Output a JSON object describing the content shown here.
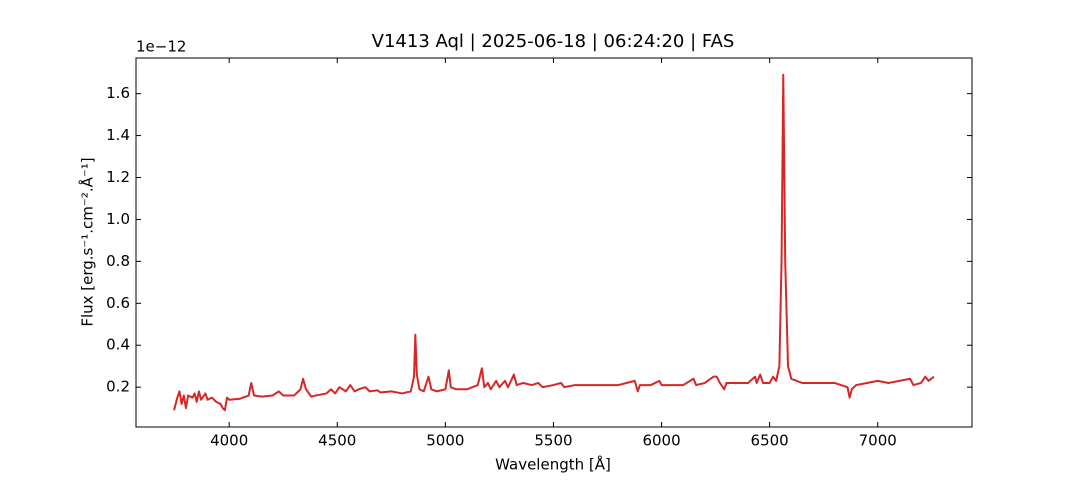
{
  "chart_data": {
    "type": "line",
    "title": "V1413 Aql | 2025-06-18 | 06:24:20 | FAS",
    "x_label": "Wavelength [Å]",
    "y_label": "Flux [erg.s⁻¹.cm⁻².Å⁻¹]",
    "y_offset_label": "1e−12",
    "color": "#d62728",
    "x": [
      3745,
      3760,
      3770,
      3780,
      3790,
      3800,
      3810,
      3830,
      3840,
      3850,
      3860,
      3870,
      3890,
      3900,
      3920,
      3940,
      3960,
      3970,
      3980,
      3990,
      4000,
      4050,
      4090,
      4102,
      4115,
      4150,
      4200,
      4230,
      4250,
      4300,
      4330,
      4342,
      4355,
      4380,
      4400,
      4450,
      4471,
      4490,
      4510,
      4540,
      4560,
      4580,
      4600,
      4630,
      4650,
      4686,
      4700,
      4750,
      4800,
      4840,
      4855,
      4861,
      4868,
      4880,
      4900,
      4922,
      4935,
      4960,
      5000,
      5016,
      5025,
      5050,
      5100,
      5150,
      5169,
      5180,
      5197,
      5210,
      5235,
      5250,
      5276,
      5290,
      5317,
      5330,
      5360,
      5400,
      5430,
      5450,
      5500,
      5535,
      5550,
      5600,
      5700,
      5800,
      5876,
      5890,
      5900,
      5950,
      5990,
      6000,
      6100,
      6148,
      6160,
      6200,
      6240,
      6255,
      6270,
      6290,
      6300,
      6350,
      6400,
      6433,
      6440,
      6456,
      6470,
      6500,
      6516,
      6530,
      6545,
      6555,
      6563,
      6572,
      6585,
      6600,
      6650,
      6700,
      6800,
      6860,
      6870,
      6880,
      6900,
      6950,
      7000,
      7050,
      7100,
      7150,
      7165,
      7200,
      7220,
      7235,
      7260
    ],
    "values": [
      0.09,
      0.15,
      0.18,
      0.12,
      0.16,
      0.1,
      0.16,
      0.15,
      0.17,
      0.13,
      0.18,
      0.14,
      0.17,
      0.14,
      0.15,
      0.13,
      0.12,
      0.1,
      0.09,
      0.15,
      0.14,
      0.145,
      0.16,
      0.22,
      0.16,
      0.155,
      0.16,
      0.18,
      0.16,
      0.16,
      0.19,
      0.24,
      0.19,
      0.155,
      0.16,
      0.17,
      0.19,
      0.17,
      0.2,
      0.18,
      0.21,
      0.18,
      0.19,
      0.2,
      0.18,
      0.185,
      0.175,
      0.18,
      0.17,
      0.18,
      0.25,
      0.45,
      0.26,
      0.19,
      0.18,
      0.25,
      0.19,
      0.18,
      0.19,
      0.28,
      0.2,
      0.19,
      0.19,
      0.21,
      0.29,
      0.2,
      0.22,
      0.19,
      0.23,
      0.2,
      0.23,
      0.2,
      0.26,
      0.21,
      0.22,
      0.21,
      0.22,
      0.2,
      0.21,
      0.22,
      0.2,
      0.21,
      0.21,
      0.21,
      0.23,
      0.18,
      0.21,
      0.21,
      0.23,
      0.21,
      0.21,
      0.24,
      0.21,
      0.22,
      0.25,
      0.25,
      0.22,
      0.19,
      0.22,
      0.22,
      0.22,
      0.25,
      0.22,
      0.26,
      0.22,
      0.22,
      0.25,
      0.23,
      0.3,
      0.8,
      1.69,
      0.8,
      0.3,
      0.24,
      0.22,
      0.22,
      0.22,
      0.2,
      0.15,
      0.19,
      0.21,
      0.22,
      0.23,
      0.22,
      0.23,
      0.24,
      0.21,
      0.22,
      0.25,
      0.23,
      0.25
    ],
    "xlim": [
      3569,
      7436
    ],
    "ylim": [
      0.01,
      1.77
    ],
    "xticks": [
      4000,
      4500,
      5000,
      5500,
      6000,
      6500,
      7000
    ],
    "yticks": [
      0.2,
      0.4,
      0.6,
      0.8,
      {
        "value": 1,
        "label": "1.0"
      },
      1.2,
      1.4,
      1.6
    ]
  }
}
